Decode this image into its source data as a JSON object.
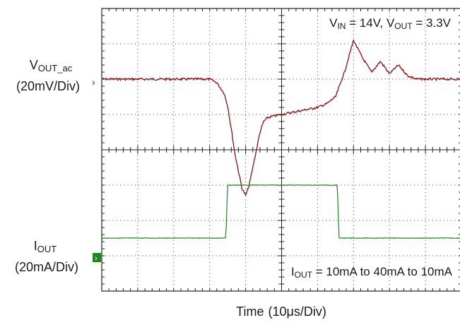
{
  "chart_data": {
    "type": "line",
    "grid": true,
    "divisions": {
      "x": 10,
      "y": 8
    },
    "x_axis": {
      "label": "Time",
      "scale": "(10μs/Div)"
    },
    "annotations": {
      "vin_vout": {
        "v1": "V",
        "v1_sub": "IN",
        "v1_rest": " = 14V, V",
        "v2_sub": "OUT",
        "v2_rest": " = 3.3V"
      },
      "iout_range": {
        "main": "I",
        "sub": "OUT",
        "rest": " = 10mA to 40mA to 10mA"
      }
    },
    "series": [
      {
        "name": "VOUT_ac",
        "channel_label": {
          "main": "V",
          "sub": "OUT_ac"
        },
        "scale_label": "(20mV/Div)",
        "color": "#8b1010",
        "unit": "mV",
        "x_div": [
          0.0,
          0.5,
          1.0,
          1.5,
          2.0,
          2.5,
          3.0,
          3.5,
          4.0,
          4.5,
          5.0,
          5.5,
          6.0,
          6.4,
          6.8,
          7.0,
          7.2,
          7.4,
          7.8,
          8.0,
          8.2,
          8.5,
          8.8,
          9.0,
          9.2,
          9.5,
          10.0,
          10.5,
          11.0,
          11.5,
          12.0,
          12.5,
          13.0,
          13.5,
          14.0,
          14.5,
          15.0,
          15.5,
          16.0,
          16.5,
          17.0,
          17.5,
          18.0,
          18.5,
          19.0,
          19.5,
          20.0
        ],
        "values": [
          0,
          0,
          0,
          0,
          0,
          0,
          0,
          0,
          0,
          0,
          0,
          0,
          0,
          -2,
          -8,
          -15,
          -28,
          -42,
          -62,
          -66,
          -60,
          -45,
          -30,
          -24,
          -22,
          -21,
          -20,
          -19,
          -18,
          -17,
          -16,
          -14,
          -10,
          4,
          22,
          12,
          4,
          10,
          3,
          8,
          2,
          0,
          0,
          0,
          0,
          0,
          0
        ]
      },
      {
        "name": "IOUT",
        "channel_label": {
          "main": "I",
          "sub": "OUT"
        },
        "scale_label": "(20mA/Div)",
        "color": "#1e8a1e",
        "unit": "mA",
        "x_div": [
          0.0,
          6.9,
          7.0,
          13.1,
          13.2,
          20.0
        ],
        "values": [
          10,
          10,
          40,
          40,
          10,
          10
        ]
      }
    ]
  }
}
